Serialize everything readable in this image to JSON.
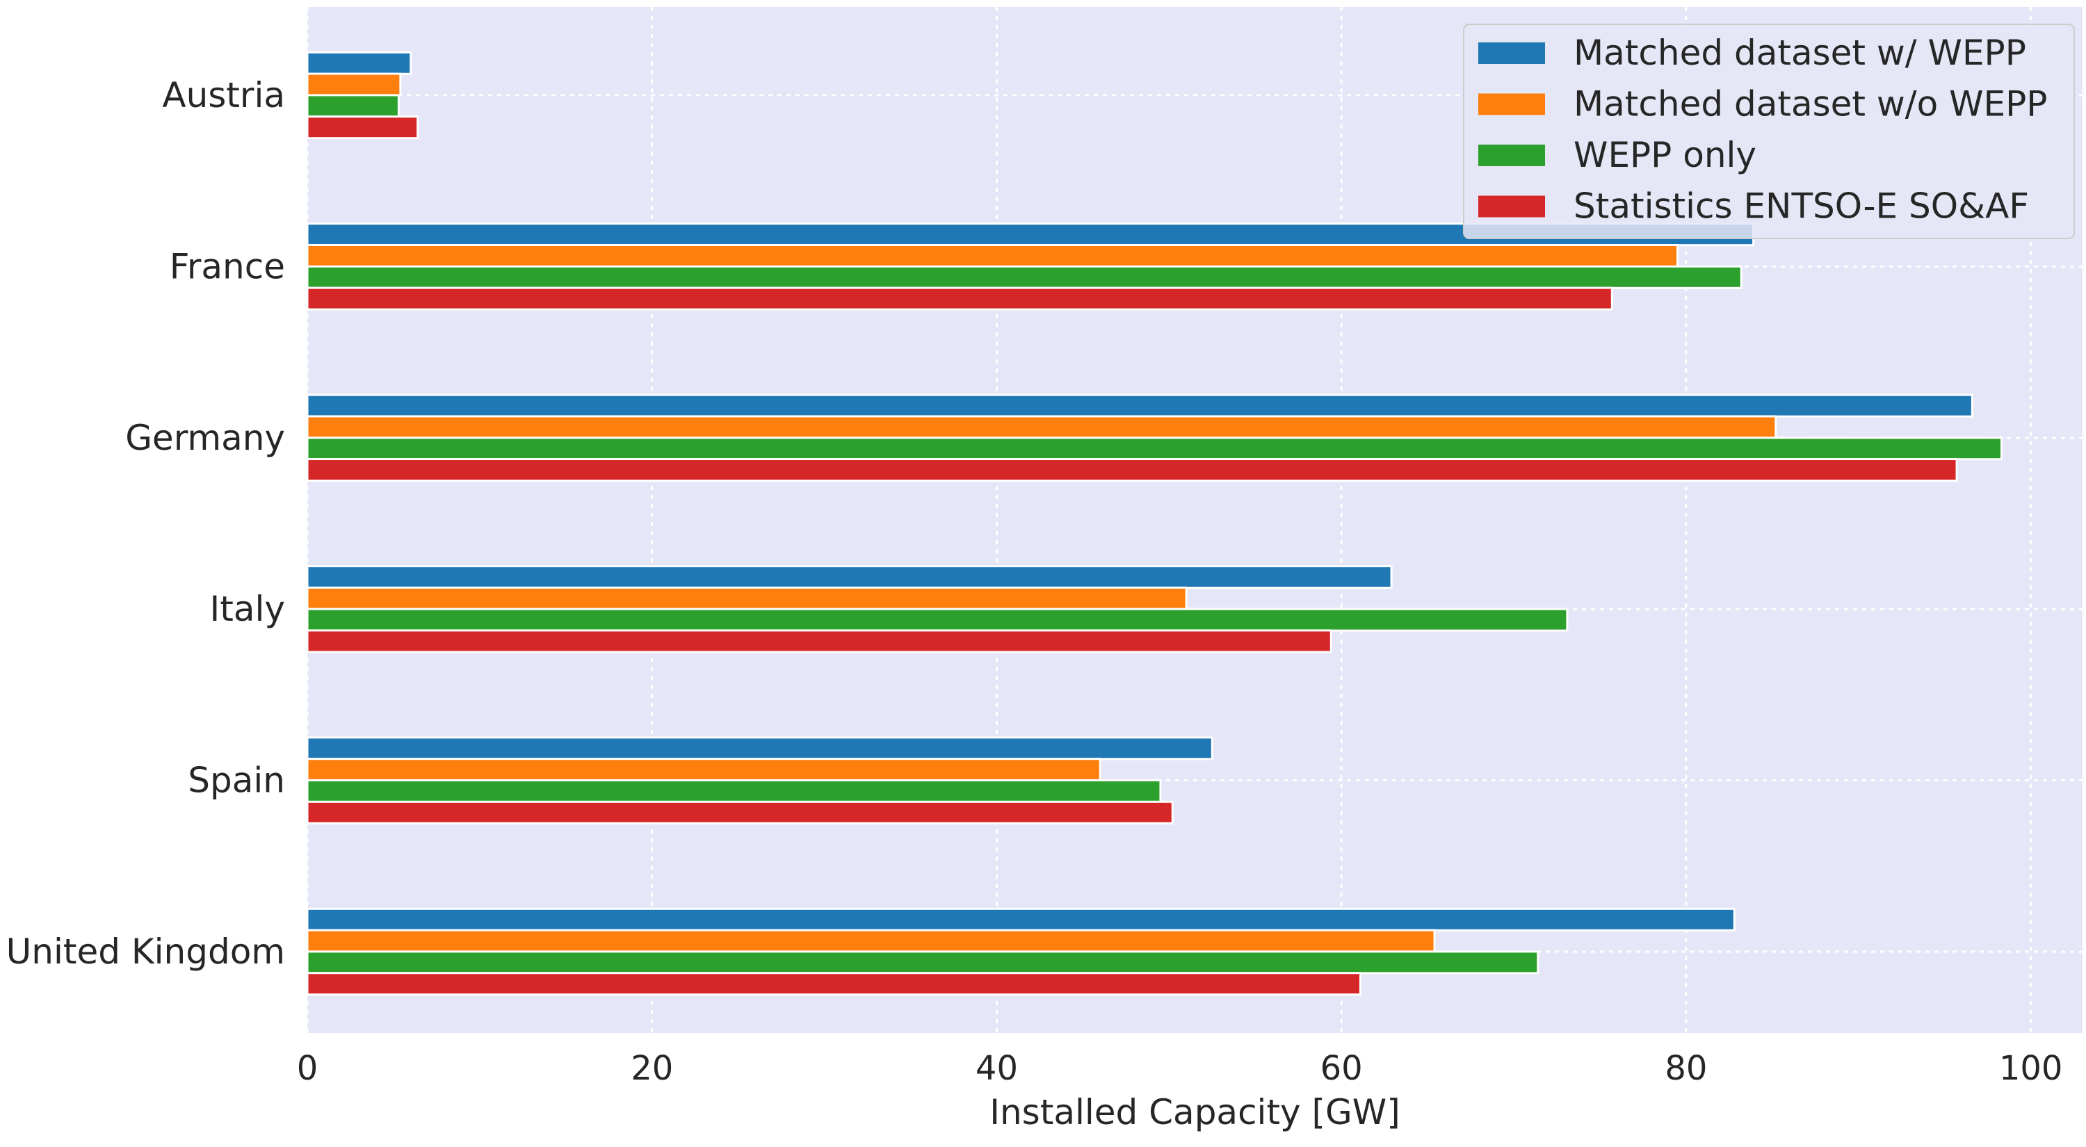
{
  "chart_data": {
    "type": "bar",
    "orientation": "horizontal",
    "categories": [
      "Austria",
      "France",
      "Germany",
      "Italy",
      "Spain",
      "United Kingdom"
    ],
    "series": [
      {
        "name": "Matched dataset w/ WEPP",
        "color": "#1f77b4",
        "values": [
          6.0,
          83.9,
          96.6,
          62.9,
          52.5,
          82.8
        ]
      },
      {
        "name": "Matched dataset w/o WEPP",
        "color": "#ff7f0e",
        "values": [
          5.4,
          79.5,
          85.2,
          51.0,
          46.0,
          65.4
        ]
      },
      {
        "name": "WEPP only",
        "color": "#2ca02c",
        "values": [
          5.3,
          83.2,
          98.3,
          73.1,
          49.5,
          71.4
        ]
      },
      {
        "name": "Statistics ENTSO-E SO&AF",
        "color": "#d62728",
        "values": [
          6.4,
          75.7,
          95.7,
          59.4,
          50.2,
          61.1
        ]
      }
    ],
    "xlabel": "Installed Capacity [GW]",
    "ylabel": "",
    "xlim": [
      0,
      103
    ],
    "xticks": [
      0,
      20,
      40,
      60,
      80,
      100
    ],
    "grid": true,
    "legend_position": "top-right",
    "background": "#e5e6f7"
  }
}
